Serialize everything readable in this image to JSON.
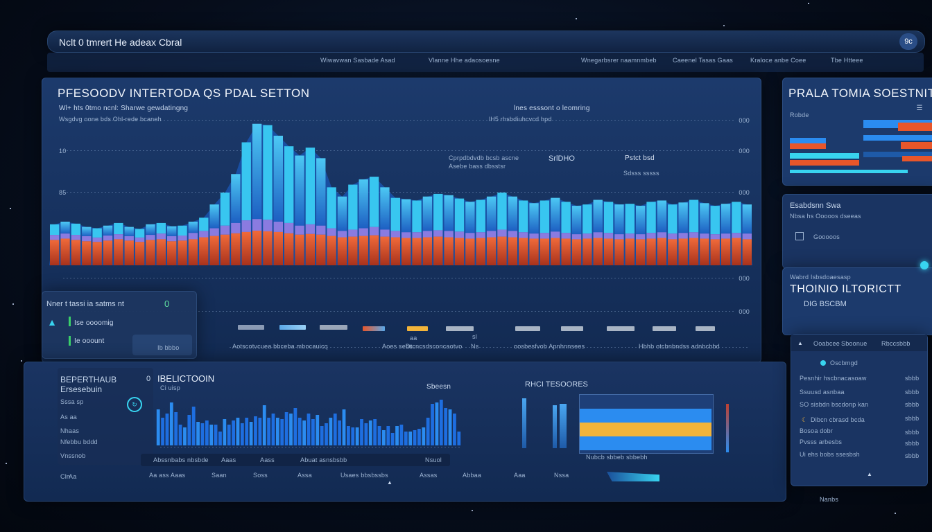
{
  "header": {
    "title": "Nclt 0 tmrert He adeax Cbral",
    "nav": [
      "Wiwavwan Sasbade Asad",
      "Vlanne Hhe adaosoesne",
      "Wnegarbsrer naamnmbeb",
      "Caeenel Tasas Gaas",
      "Kraloce anbe Coee",
      "Tbe Htteee"
    ],
    "user_badge": "9c"
  },
  "main_panel": {
    "title": "PFESOODV INTERTODA QS PDAL SETTON",
    "subtitle": "Wl+ hts 0tmo ncnl: Sharwe gewdatingng",
    "caption": "Wsgdvg oone bds Ohl-rede bcaneh",
    "top_label": "lnes esssont o leomring",
    "top_label_sub": "lH5 rhsbdiuhcvcd hpd",
    "ann1": "Cprpdbdvdb bcsb ascne",
    "ann1_sub": "Asebe bass dbsstsr",
    "ann2": "SrlDHO",
    "ann3": "Pstct bsd",
    "ann3_sub": "Sdsss sssss",
    "yticks": [
      "10",
      "85"
    ],
    "ylabels_right": [
      "000",
      "000",
      "000",
      "000",
      "000"
    ],
    "legend_title": "Nner t tassi ia satms nt",
    "legend_value": "0",
    "legend_item1": "Ise oooomig",
    "legend_item2": "Ie ooount",
    "legend_btn": "Ib bbbo",
    "footer_labels": [
      "Aotscotvcuea bbceba mbocauicq",
      "Aoes sebs",
      "Dtcncsdsconcaotvo",
      "Ns",
      "oosbesfvob Apnhnnsees",
      "Hbhb otcbnbndss adnbcbbd"
    ],
    "bar_sections": [
      "aa",
      "sl"
    ]
  },
  "chart_data": [
    {
      "type": "area",
      "title": "PFESOODV INTERTODA QS PDAL SETTON",
      "series": [
        {
          "name": "blue",
          "values": [
            62,
            66,
            63,
            58,
            56,
            60,
            64,
            58,
            55,
            62,
            64,
            59,
            60,
            66,
            72,
            92,
            110,
            138,
            186,
            214,
            212,
            196,
            180,
            166,
            178,
            162,
            118,
            104,
            122,
            130,
            134,
            118,
            102,
            100,
            98,
            104,
            108,
            106,
            101,
            96,
            99,
            104,
            110,
            104,
            98,
            94,
            98,
            102,
            96,
            90,
            92,
            99,
            96,
            92,
            93,
            90,
            96,
            98,
            92,
            95,
            99,
            94,
            90,
            93,
            96,
            92
          ]
        },
        {
          "name": "purple",
          "values": [
            46,
            48,
            46,
            44,
            42,
            45,
            47,
            44,
            42,
            46,
            48,
            44,
            45,
            49,
            52,
            56,
            60,
            64,
            68,
            70,
            69,
            66,
            64,
            60,
            62,
            60,
            56,
            52,
            54,
            56,
            58,
            54,
            52,
            50,
            50,
            52,
            53,
            52,
            51,
            49,
            50,
            52,
            54,
            52,
            50,
            48,
            49,
            51,
            49,
            47,
            48,
            50,
            49,
            47,
            48,
            47,
            49,
            50,
            48,
            49,
            50,
            48,
            47,
            48,
            49,
            48
          ]
        },
        {
          "name": "orange",
          "values": [
            30,
            32,
            30,
            28,
            27,
            29,
            31,
            29,
            27,
            30,
            31,
            28,
            29,
            31,
            34,
            36,
            38,
            40,
            42,
            44,
            43,
            42,
            40,
            38,
            39,
            38,
            36,
            34,
            35,
            36,
            37,
            35,
            34,
            33,
            33,
            34,
            35,
            34,
            33,
            32,
            33,
            34,
            35,
            34,
            33,
            32,
            32,
            33,
            32,
            31,
            32,
            33,
            32,
            31,
            32,
            31,
            32,
            33,
            31,
            32,
            33,
            32,
            31,
            32,
            33,
            31
          ]
        }
      ],
      "ylim": [
        0,
        220
      ]
    },
    {
      "type": "bar",
      "title": "IBELICTOOIN",
      "values": [
        52,
        40,
        46,
        62,
        48,
        30,
        26,
        44,
        56,
        34,
        32,
        36,
        30,
        30,
        20,
        38,
        30,
        36,
        40,
        32,
        40,
        34,
        42,
        40,
        58,
        40,
        46,
        40,
        38,
        48,
        46,
        54,
        40,
        36,
        46,
        38,
        44,
        28,
        32,
        40,
        46,
        36,
        52,
        28,
        26,
        26,
        38,
        32,
        36,
        38,
        28,
        22,
        28,
        18,
        28,
        30,
        20,
        20,
        22,
        24,
        26,
        40,
        60,
        62,
        66,
        54,
        52,
        46,
        20
      ]
    }
  ],
  "lower_panel": {
    "title": "BEPERTHAUB",
    "title2": "IBELICTOOIN",
    "subtitle": "Ersesebuin",
    "subtitle2": "Ci uisp",
    "zero_label": "0",
    "side_labels": [
      "Sssa sp",
      "As aa",
      "Nhaas",
      "Nfebbu bddd",
      "Vnssnob",
      "Cln"
    ],
    "annotation": "Sbeesn",
    "x_labels": [
      "Abssnbabs nbsbde",
      "Aaas",
      "Aass",
      "Abuat asnsbsbb",
      "Nsuol"
    ],
    "footer_labels": [
      "Aa",
      "Aa ass Aaas",
      "Saan",
      "Soss",
      "Assa",
      "Usaes bbsbssbs",
      "Assas",
      "Abbaa",
      "Aaa",
      "Nssa"
    ],
    "hbar_title": "RHCI TESOORES",
    "hbar_bottom": "Nubcb sbbeb sbbebh"
  },
  "right_top": {
    "title": "PRALA TOMIA SOESTNIT",
    "label": "Robde"
  },
  "right_mid": {
    "title": "Esabdsnn Swa",
    "line1": "Nbsa hs Ooooos dseeas",
    "line2": "Gooooos",
    "title2": "Wabrd Isbsdoaesasp",
    "headline": "THOINIO ILTORICTT",
    "sub": "DIG BSCBM"
  },
  "right_bottom": {
    "header_left": "Ooabcee",
    "header_mid": "Sboonue",
    "header_right": "Rbccsbbb",
    "items": [
      {
        "label": "Oscbmgd",
        "value": ""
      },
      {
        "label": "Pesnhir hscbnacasoaw",
        "value": "sbbb"
      },
      {
        "label": "Ssuusd asnbaa",
        "value": "sbbb"
      },
      {
        "label": "SO sisbdn bscdonp kan",
        "value": "sbbb"
      },
      {
        "label": "Dibcn cbrasd bcda",
        "value": "sbbb"
      },
      {
        "label": "Bosoa dobr",
        "value": "sbbb"
      },
      {
        "label": "Pvsss arbesbs",
        "value": "sbbb"
      },
      {
        "label": "Ui ehs bobs ssesbsh",
        "value": "sbbb"
      }
    ],
    "footer": "Nanbs"
  },
  "colors": {
    "accent_blue": "#1e7cf0",
    "cyan": "#38d4f0",
    "orange": "#e8562a",
    "purple": "#8a7be0",
    "yellow": "#f2b43a"
  }
}
